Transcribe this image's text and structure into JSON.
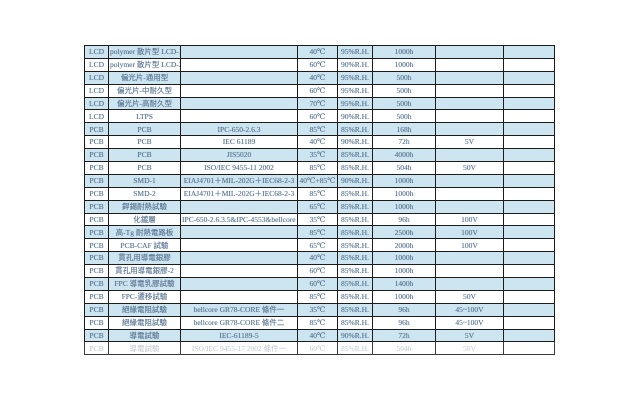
{
  "page": {
    "background_color": "#ffffff",
    "description": "Reliability test specification table for LCD and PCB items"
  },
  "colors": {
    "row_highlight": "#cde5f0",
    "row_plain": "#ffffff",
    "text": "#54718e",
    "border": "#1c1c1c"
  },
  "table": {
    "columns": [
      "category",
      "item",
      "standard",
      "temperature",
      "humidity",
      "duration",
      "voltage",
      "note"
    ],
    "rows": [
      {
        "highlight": true,
        "faded": false,
        "cells": [
          "LCD",
          "polymer 散片型 LCD-1",
          "",
          "40℃",
          "95%R.H.",
          "1000h",
          "",
          ""
        ]
      },
      {
        "highlight": false,
        "faded": false,
        "cells": [
          "LCD",
          "polymer 散片型 LCD-2",
          "",
          "60℃",
          "90%R.H.",
          "1000h",
          "",
          ""
        ]
      },
      {
        "highlight": true,
        "faded": false,
        "cells": [
          "LCD",
          "偏光片-通用型",
          "",
          "40℃",
          "95%R.H.",
          "500h",
          "",
          ""
        ]
      },
      {
        "highlight": false,
        "faded": false,
        "cells": [
          "LCD",
          "偏光片-中耐久型",
          "",
          "60℃",
          "95%R.H.",
          "500h",
          "",
          ""
        ]
      },
      {
        "highlight": true,
        "faded": false,
        "cells": [
          "LCD",
          "偏光片-高耐久型",
          "",
          "70℃",
          "95%R.H.",
          "500h",
          "",
          ""
        ]
      },
      {
        "highlight": false,
        "faded": false,
        "cells": [
          "LCD",
          "LTPS",
          "",
          "60℃",
          "90%R.H.",
          "500h",
          "",
          ""
        ]
      },
      {
        "highlight": true,
        "faded": false,
        "cells": [
          "PCB",
          "PCB",
          "IPC-650-2.6.3",
          "85℃",
          "85%R.H.",
          "168h",
          "",
          ""
        ]
      },
      {
        "highlight": false,
        "faded": false,
        "cells": [
          "PCB",
          "PCB",
          "IEC 61189",
          "40℃",
          "90%R.H.",
          "72h",
          "5V",
          ""
        ]
      },
      {
        "highlight": true,
        "faded": false,
        "cells": [
          "PCB",
          "PCB",
          "JIS5020",
          "35℃",
          "85%R.H.",
          "4000h",
          "",
          ""
        ]
      },
      {
        "highlight": false,
        "faded": false,
        "cells": [
          "PCB",
          "PCB",
          "ISO/IEC 9455-11 2002",
          "85℃",
          "85%R.H.",
          "504h",
          "50V",
          ""
        ]
      },
      {
        "highlight": true,
        "faded": false,
        "cells": [
          "PCB",
          "SMD-1",
          "EIAJ4701＋MIL-202G＋IEC68-2-3",
          "40℃+85℃",
          "90%R.H.",
          "1000h",
          "",
          ""
        ]
      },
      {
        "highlight": false,
        "faded": false,
        "cells": [
          "PCB",
          "SMD-2",
          "EIAJ4701＋MIL-202G＋IEC68-2-3",
          "85℃",
          "85%R.H.",
          "1000h",
          "",
          ""
        ]
      },
      {
        "highlight": true,
        "faded": false,
        "cells": [
          "PCB",
          "銲錫耐熱試驗",
          "",
          "65℃",
          "85%R.H.",
          "1000h",
          "",
          ""
        ]
      },
      {
        "highlight": false,
        "faded": false,
        "cells": [
          "PCB",
          "化鍍層",
          "IPC-650-2.6.3.5&IPC-4553&bellcore GR-78",
          "35℃",
          "85%R.H.",
          "96h",
          "100V",
          ""
        ]
      },
      {
        "highlight": true,
        "faded": false,
        "cells": [
          "PCB",
          "高-Tg 耐熱電路板",
          "",
          "85℃",
          "85%R.H.",
          "2500h",
          "100V",
          ""
        ]
      },
      {
        "highlight": false,
        "faded": false,
        "cells": [
          "PCB",
          "PCB-CAF 試驗",
          "",
          "65℃",
          "85%R.H.",
          "2000h",
          "100V",
          ""
        ]
      },
      {
        "highlight": true,
        "faded": false,
        "cells": [
          "PCB",
          "貫孔用導電銀膠",
          "",
          "40℃",
          "85%R.H.",
          "1000h",
          "",
          ""
        ]
      },
      {
        "highlight": false,
        "faded": false,
        "cells": [
          "PCB",
          "貫孔用導電銀膠-2",
          "",
          "60℃",
          "85%R.H.",
          "1000h",
          "",
          ""
        ]
      },
      {
        "highlight": true,
        "faded": false,
        "cells": [
          "PCB",
          "FPC 導電乳膠試驗",
          "",
          "60℃",
          "85%R.H.",
          "1400h",
          "",
          ""
        ]
      },
      {
        "highlight": false,
        "faded": false,
        "cells": [
          "PCB",
          "FPC-遷移試驗",
          "",
          "85℃",
          "85%R.H.",
          "1000h",
          "50V",
          ""
        ]
      },
      {
        "highlight": true,
        "faded": false,
        "cells": [
          "PCB",
          "絕緣電阻試驗",
          "bellcore GR78-CORE 條件一",
          "35℃",
          "85%R.H.",
          "96h",
          "45~100V",
          ""
        ]
      },
      {
        "highlight": false,
        "faded": false,
        "cells": [
          "PCB",
          "絕緣電阻試驗",
          "bellcore GR78-CORE 條件二",
          "85℃",
          "85%R.H.",
          "96h",
          "45~100V",
          ""
        ]
      },
      {
        "highlight": true,
        "faded": false,
        "cells": [
          "PCB",
          "導電試驗",
          "IEC-61189-5",
          "40℃",
          "90%R.H.",
          "72h",
          "5V",
          ""
        ]
      },
      {
        "highlight": false,
        "faded": true,
        "cells": [
          "PCB",
          "導電試驗",
          "ISO/IEC 9455-17 2002 條件一",
          "60℃",
          "85%R.H.",
          "504h",
          "50V",
          ""
        ]
      }
    ]
  }
}
